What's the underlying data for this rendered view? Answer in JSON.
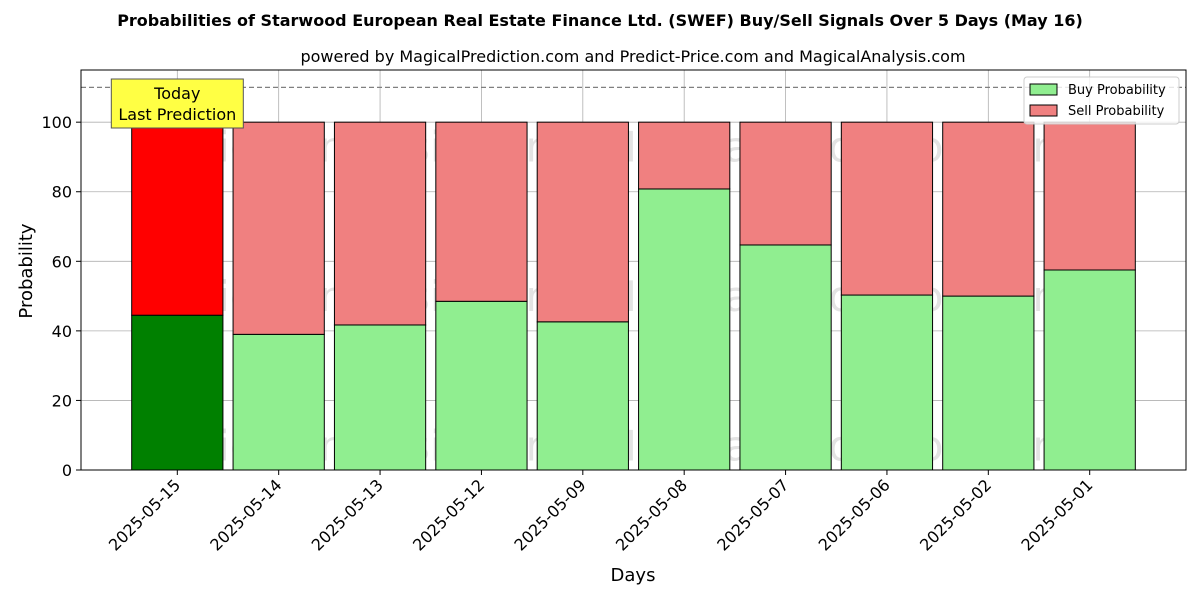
{
  "chart_data": {
    "type": "bar",
    "stacked": true,
    "title": "Probabilities of Starwood European Real Estate Finance Ltd. (SWEF) Buy/Sell Signals Over 5 Days (May 16)",
    "subtitle": "powered by MagicalPrediction.com and Predict-Price.com and MagicalAnalysis.com",
    "xlabel": "Days",
    "ylabel": "Probability",
    "ylim": [
      0,
      115
    ],
    "yticks": [
      0,
      20,
      40,
      60,
      80,
      100
    ],
    "grid": true,
    "legend_position": "top-right",
    "categories": [
      "2025-05-15",
      "2025-05-14",
      "2025-05-13",
      "2025-05-12",
      "2025-05-09",
      "2025-05-08",
      "2025-05-07",
      "2025-05-06",
      "2025-05-02",
      "2025-05-01"
    ],
    "series": [
      {
        "name": "Buy Probability",
        "color": "#90ee90",
        "highlight_color": "#008000",
        "values": [
          44.5,
          39.0,
          41.7,
          48.5,
          42.6,
          80.8,
          64.7,
          50.3,
          50.0,
          57.5
        ]
      },
      {
        "name": "Sell Probability",
        "color": "#f08080",
        "highlight_color": "#ff0000",
        "values": [
          55.5,
          61.0,
          58.3,
          51.5,
          57.4,
          19.2,
          35.3,
          49.7,
          50.0,
          42.5
        ]
      }
    ],
    "reference_line": {
      "y": 110,
      "style": "dashed"
    },
    "annotation": {
      "lines": [
        "Today",
        "Last Prediction"
      ],
      "category": "2025-05-15"
    },
    "watermarks": [
      "MagicalAnalysis.com",
      "MagicalPrediction.com"
    ]
  }
}
